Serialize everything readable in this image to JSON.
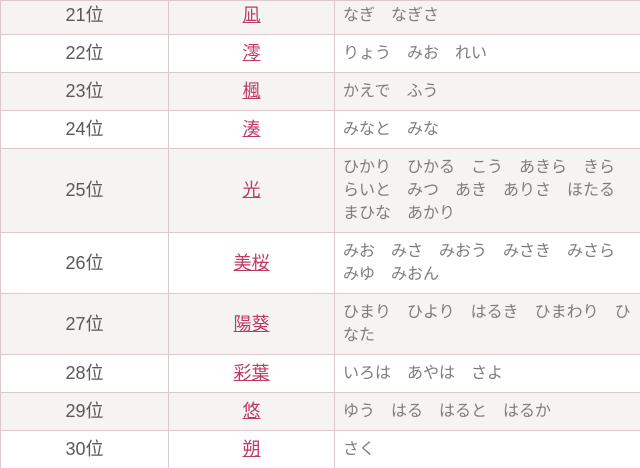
{
  "colors": {
    "link_color": "#bf3a62",
    "border_color": "#dcc8c8",
    "shaded_row_bg": "#f6f4f3",
    "rank_text_color": "#595959",
    "reading_text_color": "#7d7d7d"
  },
  "table": {
    "columns": [
      "rank",
      "name_kanji",
      "readings"
    ],
    "rows": [
      {
        "rank": "21位",
        "kanji": "凪",
        "readings": "なぎ　なぎさ"
      },
      {
        "rank": "22位",
        "kanji": "澪",
        "readings": "りょう　みお　れい"
      },
      {
        "rank": "23位",
        "kanji": "楓",
        "readings": "かえで　ふう"
      },
      {
        "rank": "24位",
        "kanji": "湊",
        "readings": "みなと　みな"
      },
      {
        "rank": "25位",
        "kanji": "光",
        "readings": "ひかり　ひかる　こう　あきら　きら　らいと　みつ　あき　ありさ　ほたる　まひな　あかり"
      },
      {
        "rank": "26位",
        "kanji": "美桜",
        "readings": "みお　みさ　みおう　みさき　みさら　みゆ　みおん"
      },
      {
        "rank": "27位",
        "kanji": "陽葵",
        "readings": "ひまり　ひより　はるき　ひまわり　ひなた"
      },
      {
        "rank": "28位",
        "kanji": "彩葉",
        "readings": "いろは　あやは　さよ"
      },
      {
        "rank": "29位",
        "kanji": "悠",
        "readings": "ゆう　はる　はると　はるか"
      },
      {
        "rank": "30位",
        "kanji": "朔",
        "readings": "さく"
      }
    ]
  }
}
